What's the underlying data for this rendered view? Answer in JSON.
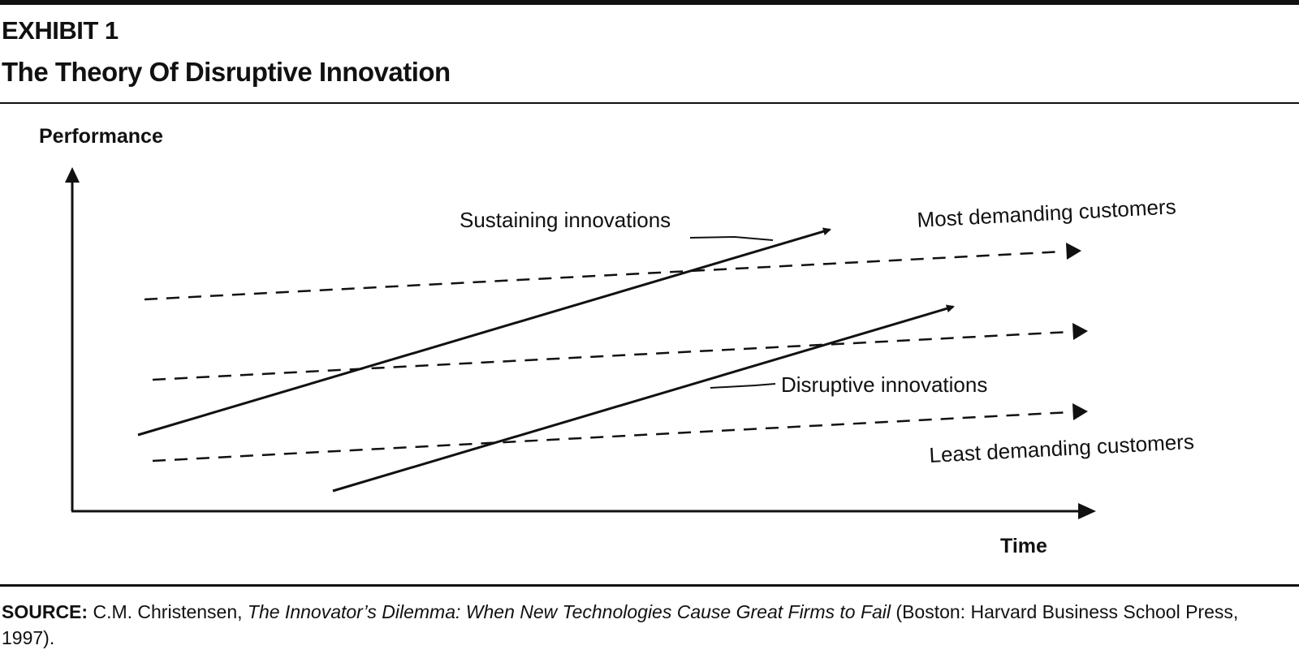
{
  "header": {
    "exhibit_label": "EXHIBIT 1",
    "title": "The Theory Of Disruptive Innovation"
  },
  "diagram": {
    "y_axis_label": "Performance",
    "x_axis_label": "Time",
    "labels": {
      "sustaining": "Sustaining innovations",
      "disruptive": "Disruptive innovations",
      "most_demanding": "Most demanding customers",
      "least_demanding": "Least demanding customers"
    }
  },
  "source": {
    "label": "SOURCE:",
    "author": "C.M. Christensen,",
    "book_title": "The Innovator’s Dilemma: When New Technologies Cause Great Firms to Fail",
    "publication": "(Boston: Harvard Business School Press, 1997)."
  },
  "colors": {
    "ink": "#111111",
    "background": "#ffffff"
  }
}
